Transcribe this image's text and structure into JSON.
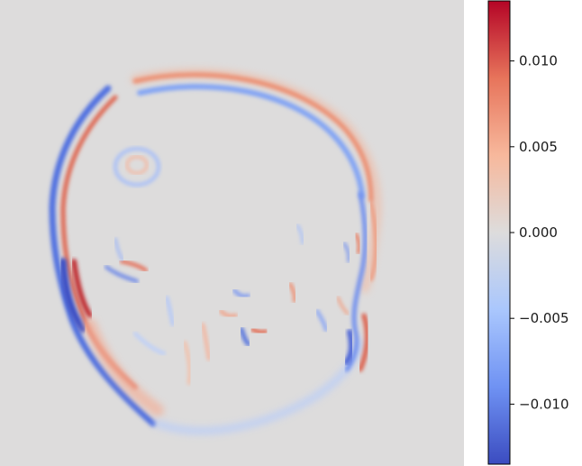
{
  "chart_data": {
    "type": "heatmap",
    "description": "",
    "colormap": "coolwarm",
    "colormap_stops": [
      "#3b4cc0",
      "#6f92f3",
      "#aac7fd",
      "#dddcdc",
      "#f7b89c",
      "#e7745b",
      "#b40426"
    ],
    "background_value": 0.0,
    "vmin": -0.0135,
    "vmax": 0.0135,
    "colorbar": {
      "orientation": "vertical",
      "location": "right",
      "ticks": [
        0.01,
        0.005,
        0.0,
        -0.005,
        -0.01
      ],
      "tick_labels": [
        "0.010",
        "0.005",
        "0.000",
        "−0.005",
        "−0.010"
      ]
    },
    "title": "",
    "xlabel": "",
    "ylabel": "",
    "axes_visible": false,
    "grid": false
  }
}
